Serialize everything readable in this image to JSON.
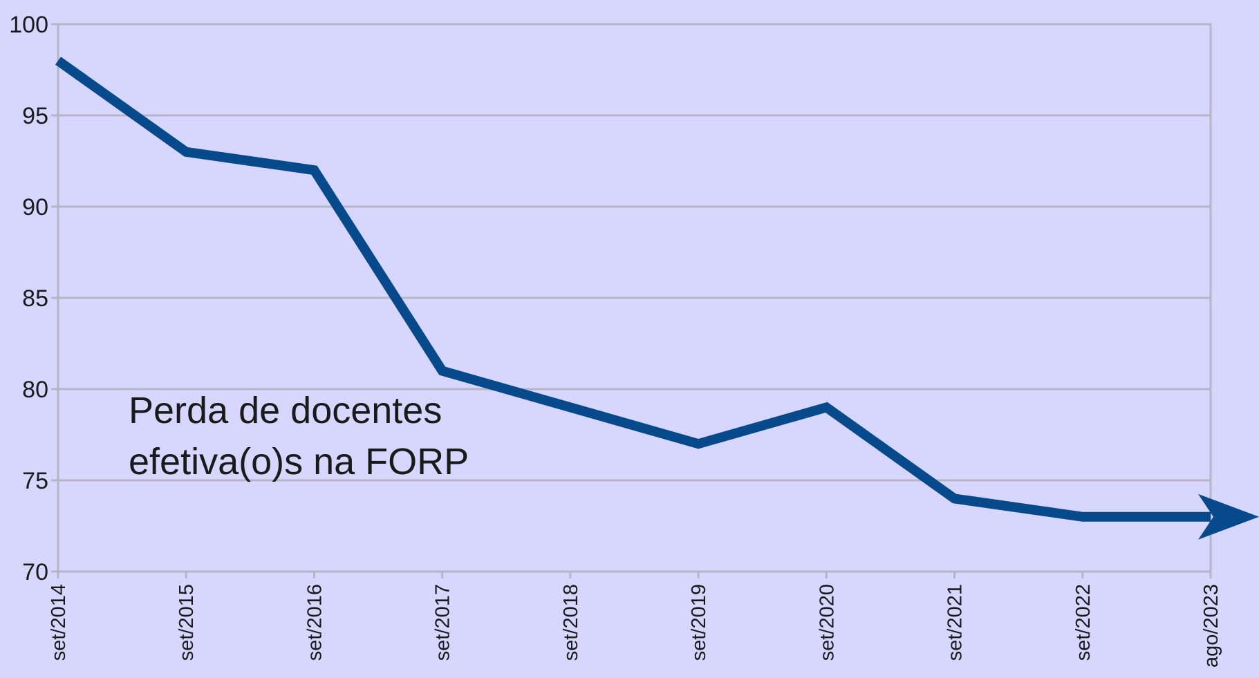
{
  "chart_data": {
    "type": "line",
    "categories": [
      "set/2014",
      "set/2015",
      "set/2016",
      "set/2017",
      "set/2018",
      "set/2019",
      "set/2020",
      "set/2021",
      "set/2022",
      "ago/2023"
    ],
    "values": [
      98,
      93,
      92,
      81,
      79,
      77,
      79,
      74,
      73,
      73
    ],
    "color": "#064a8c",
    "ylim": [
      70,
      100
    ],
    "yticks": [
      70,
      75,
      80,
      85,
      90,
      95,
      100
    ],
    "grid": true,
    "annotation": [
      "Perda de docentes",
      "efetiva(o)s na FORP"
    ]
  }
}
